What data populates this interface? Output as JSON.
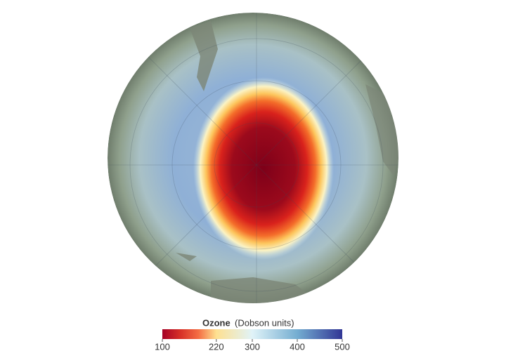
{
  "legend": {
    "title": "Ozone",
    "unit": "(Dobson units)",
    "range": [
      100,
      500
    ],
    "ticks": [
      100,
      220,
      300,
      400,
      500
    ]
  }
}
